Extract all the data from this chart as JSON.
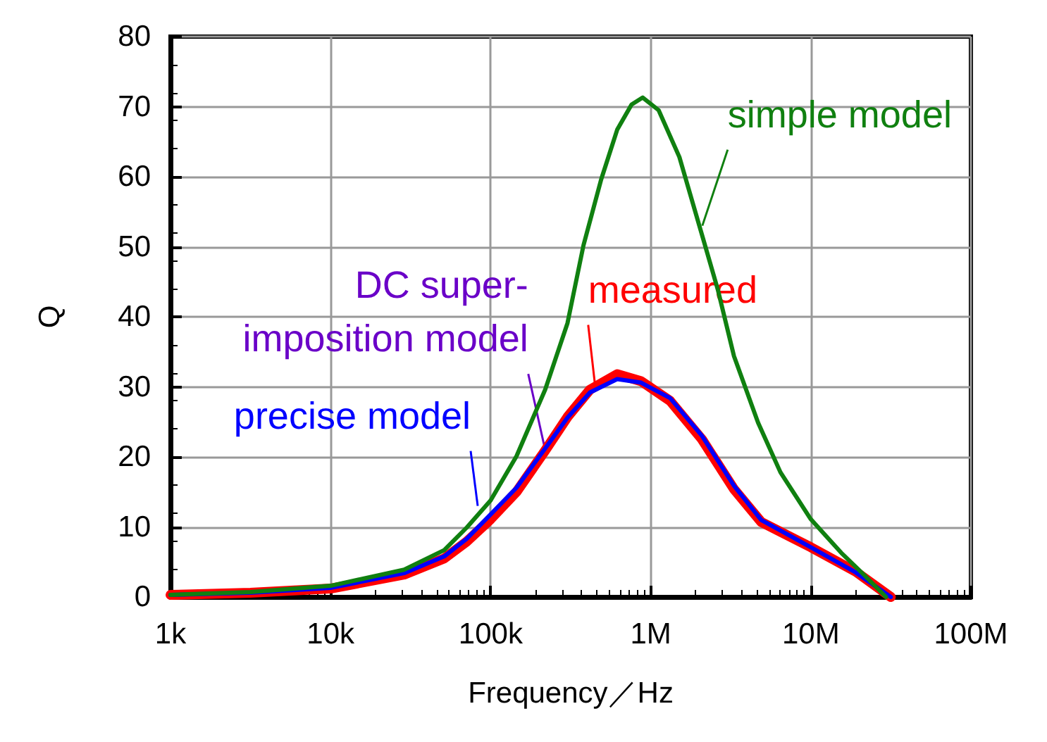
{
  "chart_data": {
    "type": "line",
    "xlabel": "Frequency／Hz",
    "ylabel": "Q",
    "log": "x",
    "xlim": [
      1000,
      100000000
    ],
    "xticks": [
      {
        "value": 1000,
        "label": "1k"
      },
      {
        "value": 10000,
        "label": "10k"
      },
      {
        "value": 100000,
        "label": "100k"
      },
      {
        "value": 1000000,
        "label": "1M"
      },
      {
        "value": 10000000,
        "label": "10M"
      },
      {
        "value": 100000000,
        "label": "100M"
      }
    ],
    "ylim": [
      0,
      80
    ],
    "yticks": [
      0,
      10,
      20,
      30,
      40,
      50,
      60,
      70,
      80
    ],
    "grid": true,
    "marker": "none",
    "line_style": "solid",
    "series": [
      {
        "color": "#ff0000",
        "x": [
          1000,
          3160,
          10000,
          28800,
          51300,
          70800,
          100000,
          145000,
          219000,
          302000,
          417000,
          617000,
          871000,
          1320000,
          2090000,
          3310000,
          4900000,
          10000000,
          19100000,
          31600000
        ],
        "values": [
          0.3,
          0.6,
          1.2,
          3.2,
          5.5,
          7.9,
          11.1,
          15.0,
          20.9,
          25.7,
          29.6,
          31.8,
          30.8,
          28.0,
          22.5,
          15.4,
          10.7,
          7.1,
          3.6,
          0
        ]
      },
      {
        "color": "#0000ff",
        "x": [
          1000,
          3160,
          10000,
          28800,
          51300,
          70800,
          100000,
          145000,
          219000,
          302000,
          417000,
          617000,
          871000,
          1320000,
          2090000,
          3310000,
          4900000,
          10000000,
          19100000,
          31600000
        ],
        "values": [
          0.3,
          0.6,
          1.3,
          3.4,
          5.8,
          8.3,
          11.8,
          15.6,
          21.2,
          25.6,
          29.2,
          31.1,
          30.6,
          28.4,
          23.0,
          15.9,
          11.0,
          7.1,
          3.5,
          0
        ]
      },
      {
        "color": "#108010",
        "x": [
          1000,
          3160,
          10000,
          28800,
          51300,
          70800,
          100000,
          145000,
          219000,
          302000,
          380000,
          490000,
          617000,
          759000,
          891000,
          1120000,
          1510000,
          2090000,
          2630000,
          3310000,
          4680000,
          6460000,
          10000000,
          15500000,
          21400000,
          29500000
        ],
        "values": [
          0.3,
          0.7,
          1.6,
          3.9,
          6.7,
          9.9,
          13.8,
          20.1,
          29.6,
          39.1,
          50.2,
          59.6,
          66.7,
          70.3,
          71.3,
          69.5,
          62.8,
          51.7,
          43.8,
          34.4,
          24.9,
          17.8,
          11.1,
          6.3,
          3.2,
          0
        ]
      }
    ],
    "annotations": [
      {
        "text": "measured",
        "x": 450000,
        "y": 30
      },
      {
        "text": "precise model",
        "x": 83000,
        "y": 13
      },
      {
        "text": "simple model",
        "x": 2100000,
        "y": 53
      },
      {
        "text": "DC super-\nimposition model",
        "x": 219000,
        "y": 21
      }
    ]
  }
}
